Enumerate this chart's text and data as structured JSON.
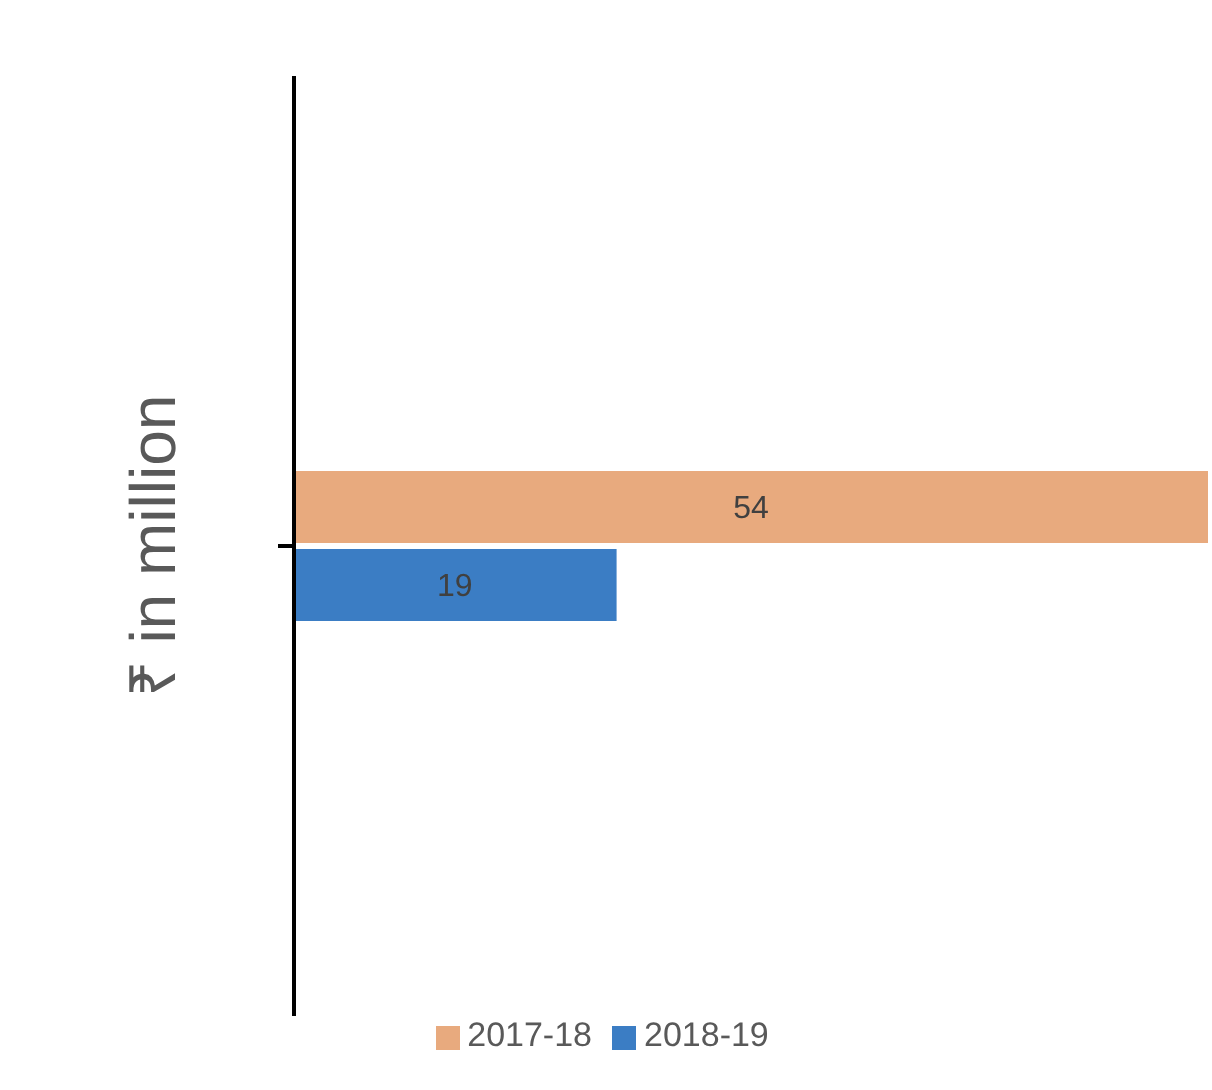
{
  "chart_data": {
    "type": "bar",
    "orientation": "horizontal",
    "ylabel": "₹ in million",
    "categories": [
      null
    ],
    "series": [
      {
        "name": "2017-18",
        "color": "#e8aa7e",
        "values": [
          54
        ]
      },
      {
        "name": "2018-19",
        "color": "#3b7dc4",
        "values": [
          19
        ]
      }
    ],
    "data_labels": true,
    "legend": "bottom",
    "grid": false
  }
}
